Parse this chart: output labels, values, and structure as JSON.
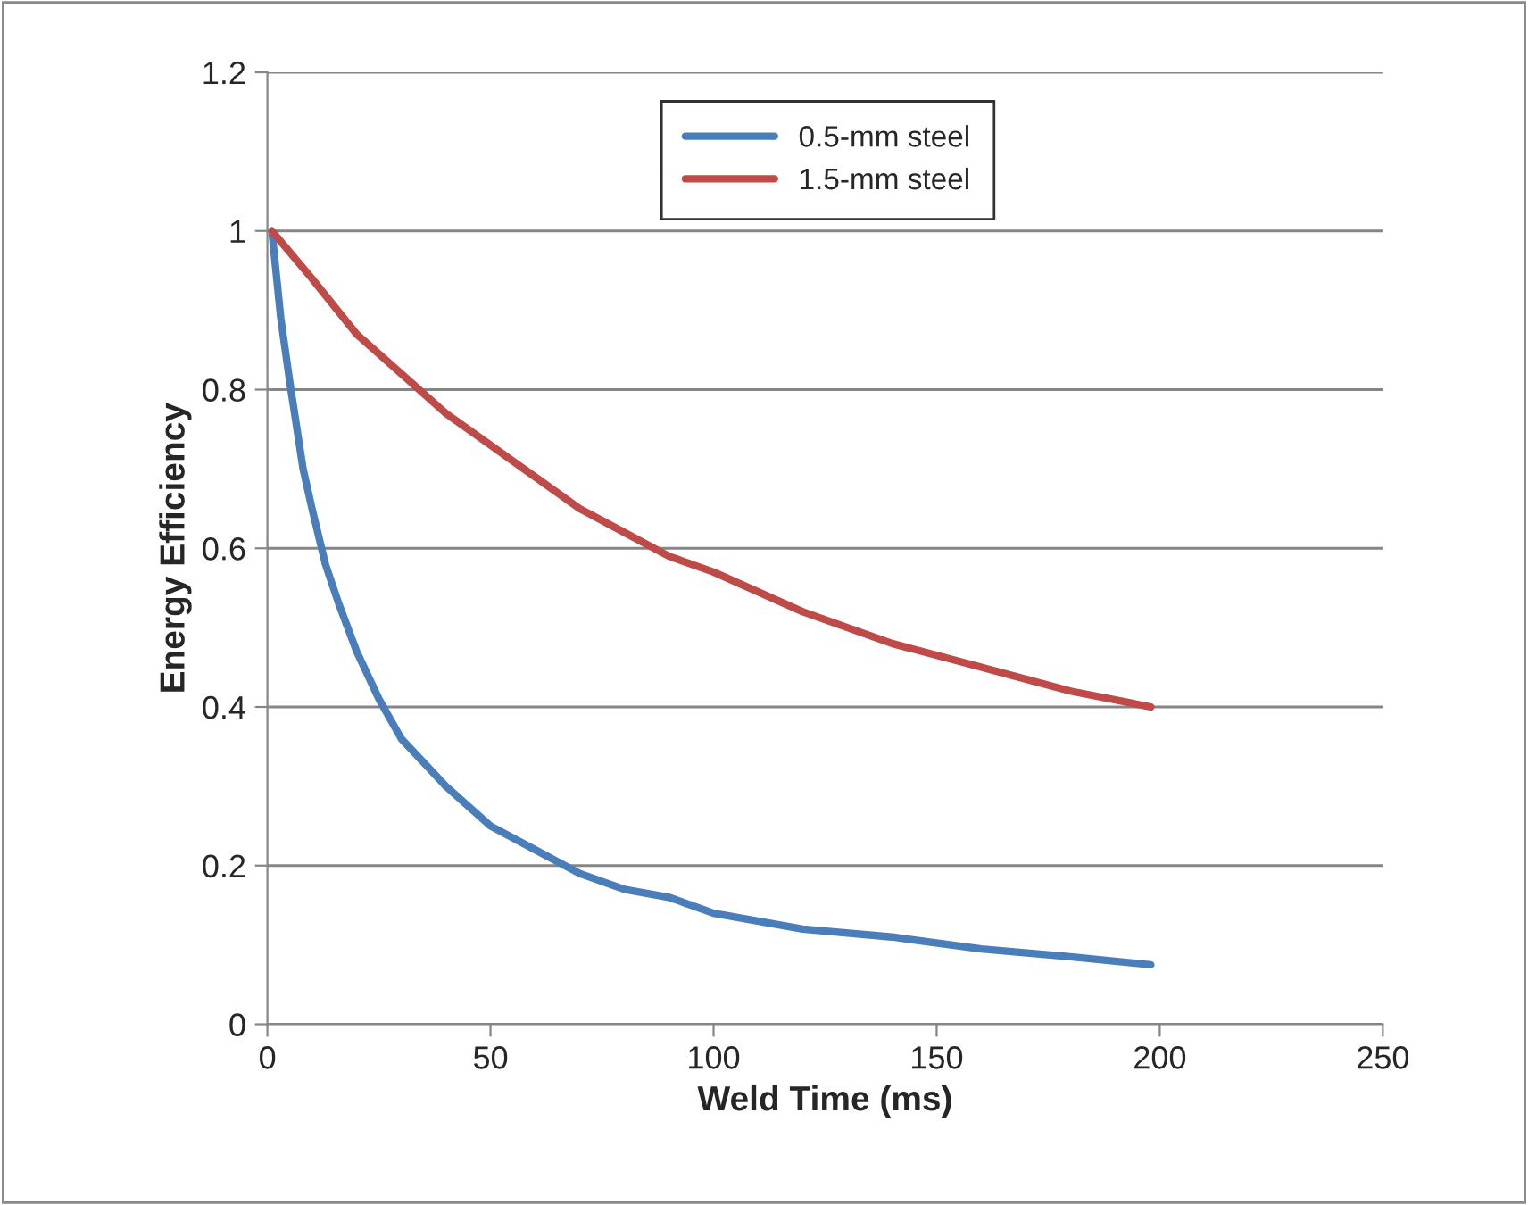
{
  "chart_data": {
    "type": "line",
    "xlabel": "Weld Time (ms)",
    "ylabel": "Energy Efficiency",
    "xlim": [
      0,
      250
    ],
    "xticks": [
      0,
      50,
      100,
      150,
      200,
      250
    ],
    "ylim": [
      0,
      1.2
    ],
    "yticks": [
      0,
      0.2,
      0.4,
      0.6,
      0.8,
      1,
      1.2
    ],
    "grid": "y",
    "legend": "top",
    "marker": "none",
    "line_style": "solid",
    "series": [
      {
        "name": "0.5-mm steel",
        "color": "#4a7ebb",
        "x": [
          1,
          3,
          5,
          8,
          10,
          13,
          16,
          20,
          25,
          30,
          35,
          40,
          50,
          60,
          70,
          80,
          90,
          100,
          120,
          140,
          160,
          180,
          198
        ],
        "values": [
          1,
          0.89,
          0.81,
          0.7,
          0.65,
          0.58,
          0.53,
          0.47,
          0.41,
          0.36,
          0.33,
          0.3,
          0.25,
          0.22,
          0.19,
          0.17,
          0.16,
          0.14,
          0.12,
          0.11,
          0.095,
          0.085,
          0.075
        ]
      },
      {
        "name": "1.5-mm steel",
        "color": "#be4b48",
        "x": [
          1,
          10,
          20,
          30,
          40,
          50,
          60,
          70,
          80,
          90,
          100,
          120,
          140,
          160,
          180,
          198
        ],
        "values": [
          1,
          0.94,
          0.87,
          0.82,
          0.77,
          0.73,
          0.69,
          0.65,
          0.62,
          0.59,
          0.57,
          0.52,
          0.48,
          0.45,
          0.42,
          0.4
        ]
      }
    ]
  }
}
